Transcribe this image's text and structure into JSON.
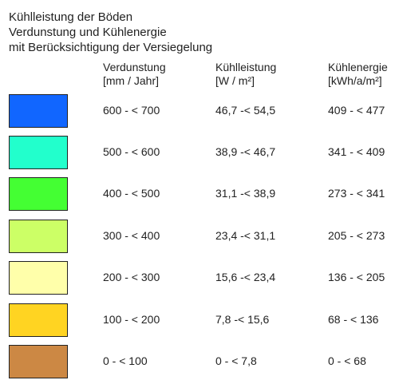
{
  "title": {
    "line1": "Kühlleistung der Böden",
    "line2": "Verdunstung und Kühlenergie",
    "line3": "mit Berücksichtigung der Versiegelung"
  },
  "columns": [
    {
      "name": "Verdunstung",
      "unit": "[mm / Jahr]"
    },
    {
      "name": "Kühlleistung",
      "unit": "[W / m²]"
    },
    {
      "name": "Kühlenergie",
      "unit": "[kWh/a/m²]"
    }
  ],
  "legend": [
    {
      "color": "#1166ff",
      "verdunstung": "600 - < 700",
      "kuehlleistung": "46,7 -< 54,5",
      "kuehlenergie": "409 - < 477"
    },
    {
      "color": "#22ffcc",
      "verdunstung": "500 - < 600",
      "kuehlleistung": "38,9 -< 46,7",
      "kuehlenergie": "341 - < 409"
    },
    {
      "color": "#44ff33",
      "verdunstung": "400 - < 500",
      "kuehlleistung": "31,1 -< 38,9",
      "kuehlenergie": "273 - < 341"
    },
    {
      "color": "#ccff66",
      "verdunstung": "300 - < 400",
      "kuehlleistung": "23,4 -< 31,1",
      "kuehlenergie": "205 - < 273"
    },
    {
      "color": "#ffffaa",
      "verdunstung": "200 - < 300",
      "kuehlleistung": "15,6 -< 23,4",
      "kuehlenergie": "136 - < 205"
    },
    {
      "color": "#ffd422",
      "verdunstung": "100 - < 200",
      "kuehlleistung": "7,8 -< 15,6",
      "kuehlenergie": "68 - < 136"
    },
    {
      "color": "#cc8844",
      "verdunstung": "0 - < 100",
      "kuehlleistung": "0 - < 7,8",
      "kuehlenergie": "0 - < 68"
    }
  ]
}
